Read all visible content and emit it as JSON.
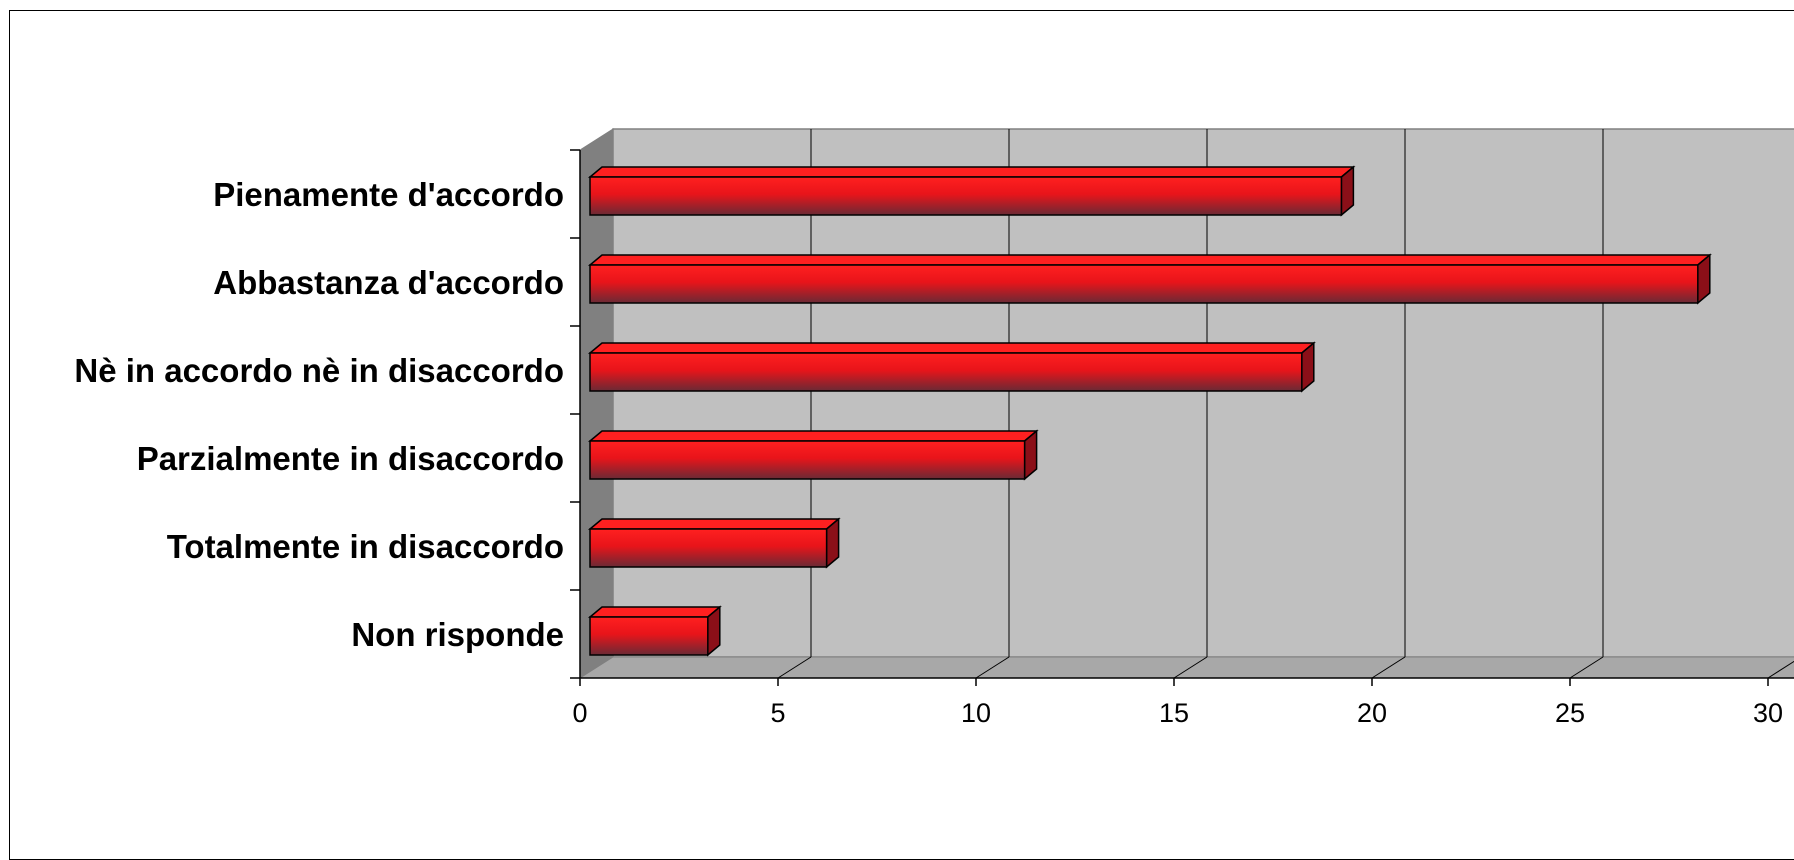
{
  "chart_data": {
    "type": "bar",
    "orientation": "horizontal",
    "style": "3d",
    "title": "",
    "xlabel": "",
    "ylabel": "",
    "categories": [
      "Pienamente d'accordo",
      "Abbastanza d'accordo",
      "Nè in accordo nè in disaccordo",
      "Parzialmente in disaccordo",
      "Totalmente in disaccordo",
      "Non risponde"
    ],
    "values": [
      19,
      28,
      18,
      11,
      6,
      3
    ],
    "xlim": [
      0,
      30
    ],
    "x_ticks": [
      "0",
      "5",
      "10",
      "15",
      "20",
      "25",
      "30"
    ],
    "grid": true,
    "legend": "none",
    "colors": {
      "bar_top": "#ff2020",
      "bar_mid": "#e8141a",
      "bar_bottom": "#6a2a35",
      "bar_end": "#8b0f18",
      "plot_back": "#c0c0c0",
      "plot_side": "#808080",
      "plot_floor": "#a8a8a8"
    }
  }
}
